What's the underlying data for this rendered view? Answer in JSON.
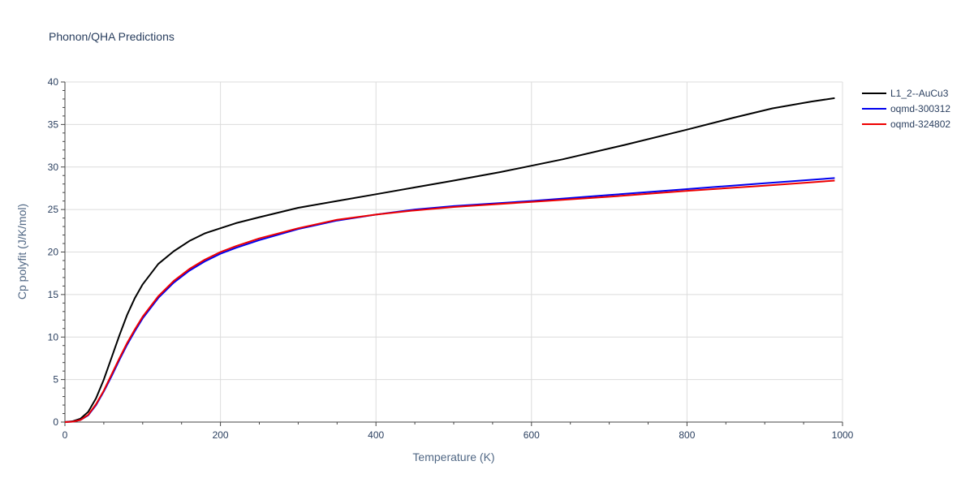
{
  "chart_data": {
    "type": "line",
    "title": "Phonon/QHA Predictions",
    "xlabel": "Temperature (K)",
    "ylabel": "Cp polyfit (J/K/mol)",
    "xlim": [
      0,
      1000
    ],
    "ylim": [
      0,
      40
    ],
    "xticks": [
      0,
      200,
      400,
      600,
      800,
      1000
    ],
    "yticks": [
      0,
      5,
      10,
      15,
      20,
      25,
      30,
      35,
      40
    ],
    "grid": true,
    "legend_position": "top-right",
    "series": [
      {
        "name": "L1_2--AuCu3",
        "color": "#000000",
        "x": [
          0,
          10,
          20,
          30,
          40,
          50,
          60,
          70,
          80,
          90,
          100,
          120,
          140,
          160,
          180,
          200,
          220,
          250,
          300,
          350,
          400,
          450,
          500,
          560,
          640,
          720,
          800,
          860,
          910,
          960,
          990
        ],
        "y": [
          0,
          0.1,
          0.4,
          1.2,
          2.8,
          5.0,
          7.6,
          10.2,
          12.6,
          14.6,
          16.2,
          18.6,
          20.1,
          21.3,
          22.2,
          22.8,
          23.4,
          24.1,
          25.2,
          26.0,
          26.8,
          27.6,
          28.4,
          29.4,
          30.9,
          32.6,
          34.4,
          35.8,
          36.9,
          37.7,
          38.1
        ]
      },
      {
        "name": "oqmd-300312",
        "color": "#0000ee",
        "x": [
          0,
          10,
          20,
          30,
          40,
          50,
          60,
          70,
          80,
          90,
          100,
          120,
          140,
          160,
          180,
          200,
          220,
          250,
          300,
          350,
          400,
          450,
          500,
          600,
          700,
          800,
          900,
          990
        ],
        "y": [
          0,
          0.05,
          0.25,
          0.8,
          2.0,
          3.6,
          5.4,
          7.3,
          9.1,
          10.7,
          12.2,
          14.6,
          16.4,
          17.8,
          18.9,
          19.8,
          20.5,
          21.4,
          22.7,
          23.7,
          24.4,
          25.0,
          25.4,
          26.0,
          26.7,
          27.4,
          28.1,
          28.7
        ]
      },
      {
        "name": "oqmd-324802",
        "color": "#ee0000",
        "x": [
          0,
          10,
          20,
          30,
          40,
          50,
          60,
          70,
          80,
          90,
          100,
          120,
          140,
          160,
          180,
          200,
          220,
          250,
          300,
          350,
          400,
          450,
          500,
          600,
          700,
          800,
          900,
          990
        ],
        "y": [
          0,
          0.05,
          0.25,
          0.85,
          2.1,
          3.7,
          5.6,
          7.5,
          9.3,
          10.9,
          12.4,
          14.8,
          16.6,
          18.0,
          19.1,
          20.0,
          20.7,
          21.6,
          22.8,
          23.8,
          24.4,
          24.9,
          25.3,
          25.9,
          26.5,
          27.2,
          27.8,
          28.4
        ]
      }
    ]
  }
}
